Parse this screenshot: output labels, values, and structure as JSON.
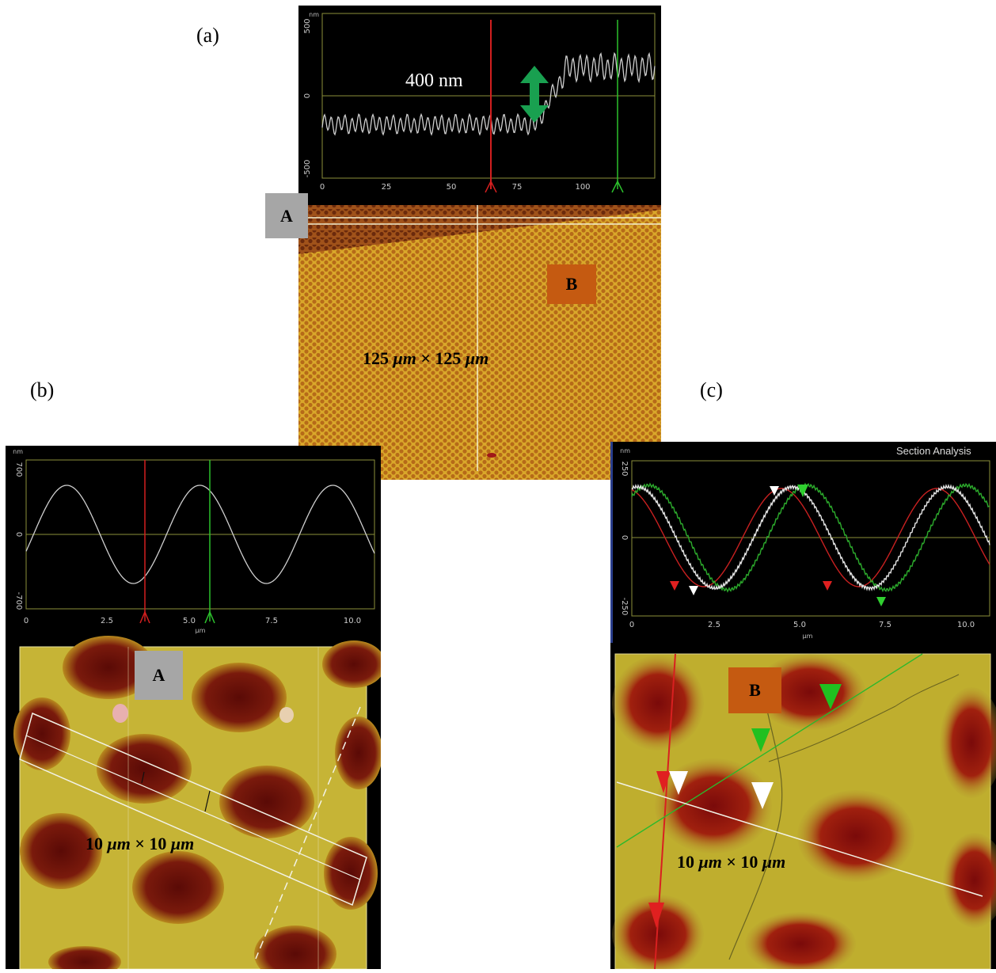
{
  "panels": {
    "a": {
      "label": "(a)",
      "profile_text": "400 nm",
      "y_unit": "nm",
      "y_ticks": [
        "500",
        "0",
        "-500"
      ],
      "x_ticks": [
        "0",
        "25",
        "50",
        "75",
        "100"
      ],
      "tag_left": "A",
      "tag_right": "B",
      "scan_size": {
        "num1": "125",
        "unit1": "μm",
        "times": "×",
        "num2": "125",
        "unit2": "μm"
      }
    },
    "b": {
      "label": "(b)",
      "y_unit": "nm",
      "x_unit": "μm",
      "y_ticks": [
        "700",
        "0",
        "-700"
      ],
      "x_ticks": [
        "0",
        "2.5",
        "5.0",
        "7.5",
        "10.0"
      ],
      "tag": "A",
      "scan_size": {
        "num1": "10",
        "unit1": "μm",
        "times": "×",
        "num2": "10",
        "unit2": "μm"
      }
    },
    "c": {
      "label": "(c)",
      "title": "Section Analysis",
      "y_unit": "nm",
      "x_unit": "μm",
      "y_ticks": [
        "250",
        "0",
        "-250"
      ],
      "x_ticks": [
        "0",
        "2.5",
        "5.0",
        "7.5",
        "10.0"
      ],
      "tag": "B",
      "scan_size": {
        "num1": "10",
        "unit1": "μm",
        "times": "×",
        "num2": "10",
        "unit2": "μm"
      }
    }
  },
  "colors": {
    "profile": "#cfcfcf",
    "grid": "#8b8f3a",
    "red_cursor": "#d21f1f",
    "green_cursor": "#2cc12c",
    "arrow": "#19a050",
    "surface": "#d6a61f"
  }
}
